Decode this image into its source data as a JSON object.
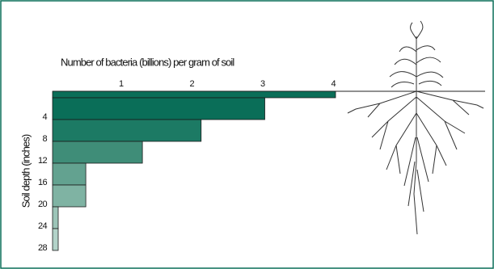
{
  "chart_data": {
    "type": "bar",
    "orientation": "horizontal",
    "title": "Number of bacteria (billions) per gram of soil",
    "y_label": "Soil depth (inches)",
    "categories": [
      null,
      "4",
      "8",
      "12",
      "16",
      "20",
      "24",
      "28"
    ],
    "values": [
      4.0,
      3.0,
      2.1,
      1.27,
      0.47,
      0.47,
      0.08,
      0.08
    ],
    "colors": [
      "#0a6e58",
      "#0a6e58",
      "#1c7a64",
      "#3f8d78",
      "#63a290",
      "#7fb3a3",
      "#9cc5b8",
      "#b2d3c9"
    ],
    "xlim": [
      0,
      4
    ],
    "xticks": [
      1,
      2,
      3,
      4
    ],
    "grid": false
  }
}
